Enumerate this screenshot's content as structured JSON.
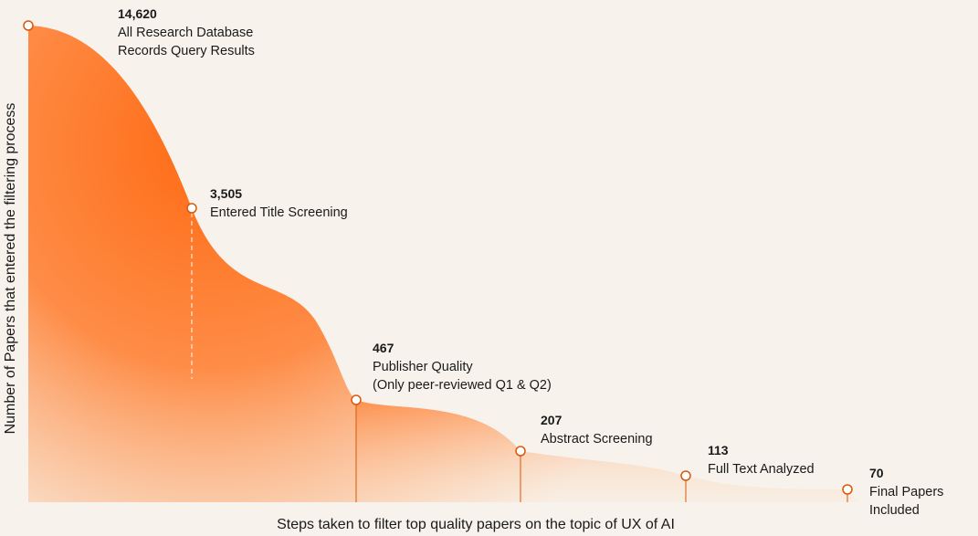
{
  "chart_data": {
    "type": "area",
    "ylabel": "Number of Papers that entered the filtering process",
    "xlabel": "Steps taken to filter top quality papers on the topic of UX of AI",
    "fill_color": "#ff6a13",
    "background": "#f7f3ec",
    "points": [
      {
        "value": 14620,
        "value_label": "14,620",
        "label_lines": [
          "All Research Database",
          "Records Query Results"
        ]
      },
      {
        "value": 3505,
        "value_label": "3,505",
        "label_lines": [
          "Entered Title Screening"
        ]
      },
      {
        "value": 467,
        "value_label": "467",
        "label_lines": [
          "Publisher Quality",
          "(Only peer-reviewed Q1 & Q2)"
        ]
      },
      {
        "value": 207,
        "value_label": "207",
        "label_lines": [
          "Abstract Screening"
        ]
      },
      {
        "value": 113,
        "value_label": "113",
        "label_lines": [
          "Full Text Analyzed"
        ]
      },
      {
        "value": 70,
        "value_label": "70",
        "label_lines": [
          "Final Papers",
          "Included"
        ]
      }
    ]
  }
}
